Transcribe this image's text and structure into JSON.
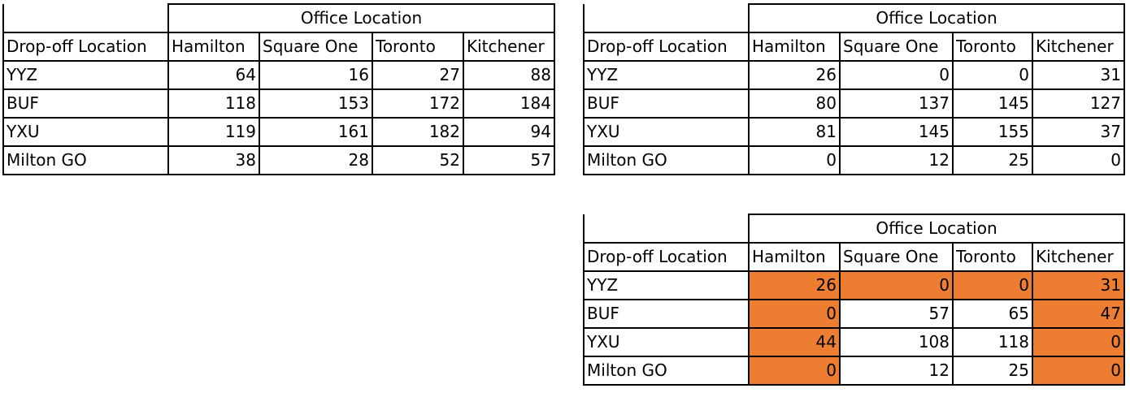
{
  "tables": [
    {
      "group_header": "Office Location",
      "row_header": "Drop-off Location",
      "columns": [
        "Hamilton",
        "Square One",
        "Toronto",
        "Kitchener"
      ],
      "rows": [
        {
          "label": "YYZ",
          "values": [
            "64",
            "16",
            "27",
            "88"
          ]
        },
        {
          "label": "BUF",
          "values": [
            "118",
            "153",
            "172",
            "184"
          ]
        },
        {
          "label": "YXU",
          "values": [
            "119",
            "161",
            "182",
            "94"
          ]
        },
        {
          "label": "Milton GO",
          "values": [
            "38",
            "28",
            "52",
            "57"
          ]
        }
      ]
    },
    {
      "group_header": "Office Location",
      "row_header": "Drop-off Location",
      "columns": [
        "Hamilton",
        "Square One",
        "Toronto",
        "Kitchener"
      ],
      "rows": [
        {
          "label": "YYZ",
          "values": [
            "26",
            "0",
            "0",
            "31"
          ]
        },
        {
          "label": "BUF",
          "values": [
            "80",
            "137",
            "145",
            "127"
          ]
        },
        {
          "label": "YXU",
          "values": [
            "81",
            "145",
            "155",
            "37"
          ]
        },
        {
          "label": "Milton GO",
          "values": [
            "0",
            "12",
            "25",
            "0"
          ]
        }
      ]
    },
    {
      "group_header": "Office Location",
      "row_header": "Drop-off Location",
      "columns": [
        "Hamilton",
        "Square One",
        "Toronto",
        "Kitchener"
      ],
      "highlight_color": "#ed7d31",
      "highlighted_columns": [
        "Hamilton",
        "Kitchener"
      ],
      "highlighted_extra_cells": [
        {
          "row": "YYZ",
          "column": "Square One"
        },
        {
          "row": "YYZ",
          "column": "Toronto"
        }
      ],
      "rows": [
        {
          "label": "YYZ",
          "values": [
            "26",
            "0",
            "0",
            "31"
          ]
        },
        {
          "label": "BUF",
          "values": [
            "0",
            "57",
            "65",
            "47"
          ]
        },
        {
          "label": "YXU",
          "values": [
            "44",
            "108",
            "118",
            "0"
          ]
        },
        {
          "label": "Milton GO",
          "values": [
            "0",
            "12",
            "25",
            "0"
          ]
        }
      ]
    }
  ]
}
